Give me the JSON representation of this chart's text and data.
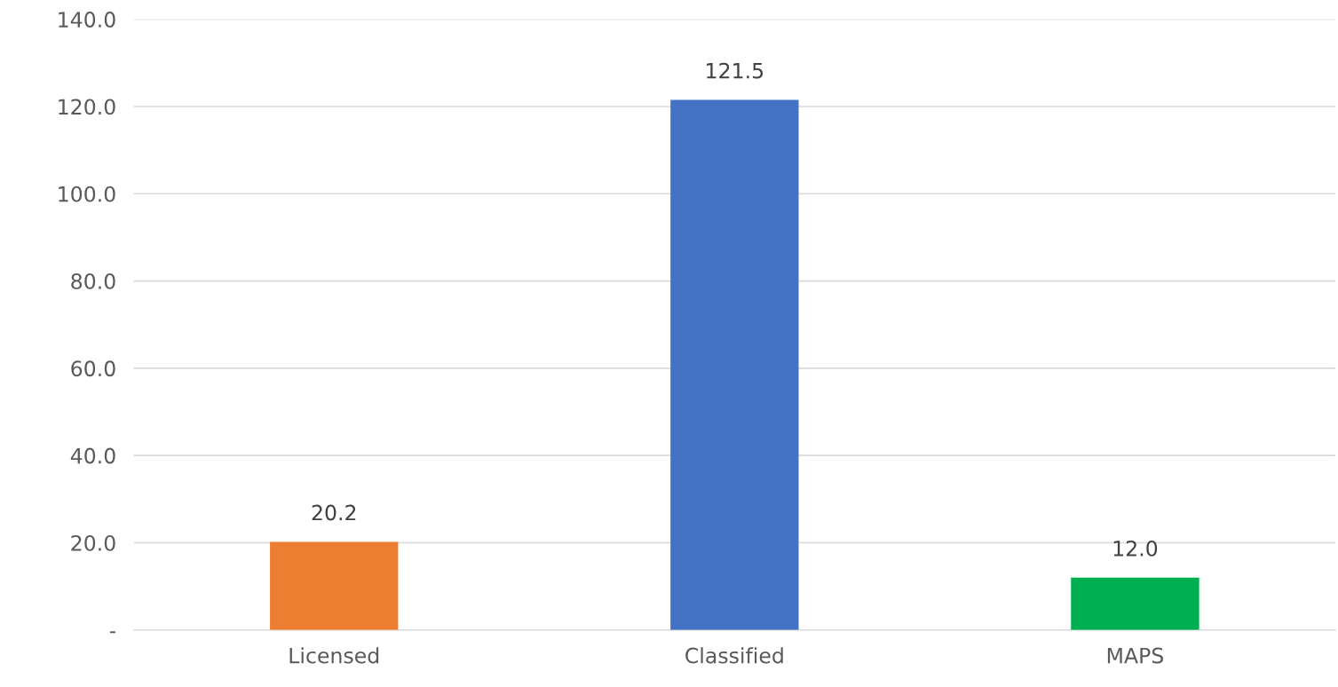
{
  "chart_data": {
    "type": "bar",
    "categories": [
      "Licensed",
      "Classified",
      "MAPS"
    ],
    "values": [
      20.2,
      121.5,
      12.0
    ],
    "colors": [
      "#ed7d31",
      "#4472c4",
      "#00b050"
    ],
    "ylim": [
      0,
      140
    ],
    "yticks": [
      {
        "value": 0,
        "label": "-"
      },
      {
        "value": 20,
        "label": "20.0"
      },
      {
        "value": 40,
        "label": "40.0"
      },
      {
        "value": 60,
        "label": "60.0"
      },
      {
        "value": 80,
        "label": "80.0"
      },
      {
        "value": 100,
        "label": "100.0"
      },
      {
        "value": 120,
        "label": "120.0"
      },
      {
        "value": 140,
        "label": "140.0"
      }
    ],
    "value_labels": [
      "20.2",
      "121.5",
      "12.0"
    ],
    "grid": "y",
    "legend": false
  }
}
